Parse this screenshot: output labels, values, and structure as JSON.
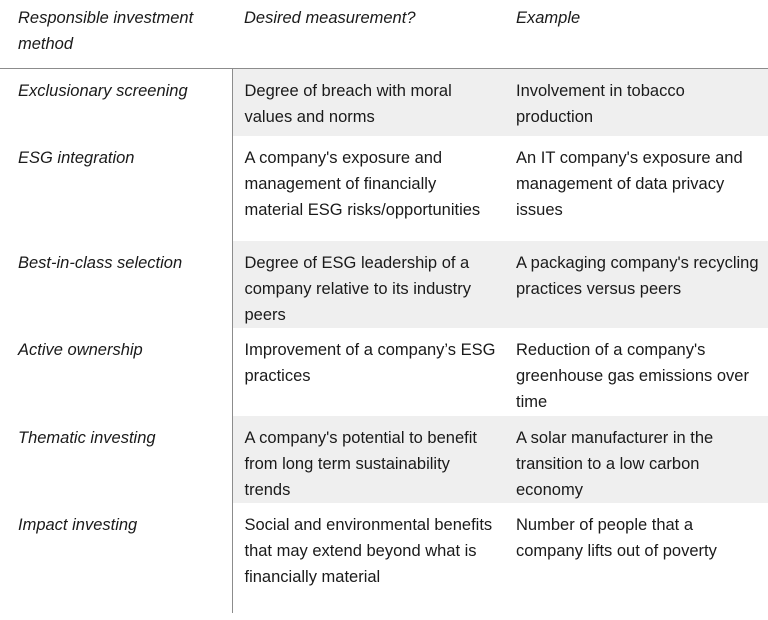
{
  "header": {
    "columns": [
      "Responsible investment method",
      "Desired measurement?",
      "Example"
    ]
  },
  "table": {
    "rows": [
      [
        "Exclusionary screening",
        "Degree of breach with moral values and norms",
        "Involvement in tobacco production"
      ],
      [
        "ESG integration",
        "A company's exposure and management of financially material ESG risks/opportunities",
        "An IT company's exposure and management of data privacy issues"
      ],
      [
        "Best-in-class selection",
        "Degree of ESG leadership of a company relative to its industry peers",
        "A packaging company's recycling practices versus peers"
      ],
      [
        "Active ownership",
        "Improvement of a company’s ESG practices",
        "Reduction of a company's greenhouse gas emissions over time"
      ],
      [
        "Thematic investing",
        "A company's potential to benefit from long term sustainability trends",
        "A solar manufacturer in the transition to a low carbon economy"
      ],
      [
        "Impact investing",
        "Social and environmental benefits that may extend beyond what is financially material",
        "Number of people that a company lifts out of poverty"
      ]
    ]
  }
}
